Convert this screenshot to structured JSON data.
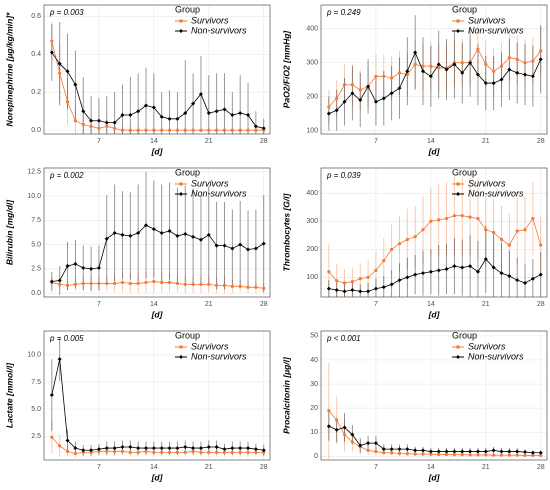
{
  "chart_data": [
    {
      "type": "line",
      "annotation": "p = 0.003",
      "y_label": "Norepinephrine [µg/kg/min]*",
      "x_label": "[d]",
      "legend_title": "Group",
      "legend": "top-right",
      "grid": true,
      "x": [
        1,
        2,
        3,
        4,
        5,
        6,
        7,
        8,
        9,
        10,
        11,
        12,
        13,
        14,
        15,
        16,
        17,
        18,
        19,
        20,
        21,
        22,
        23,
        24,
        25,
        26,
        27,
        28
      ],
      "xlim": [
        0,
        28.8
      ],
      "xticks": [
        7,
        14,
        21,
        28
      ],
      "ylim": [
        -0.02,
        0.66
      ],
      "yticks": [
        {
          "value": 0,
          "label": "0.0"
        },
        {
          "value": 0.2,
          "label": "0.2"
        },
        {
          "value": 0.4,
          "label": "0.4"
        },
        {
          "value": 0.6,
          "label": "0.6"
        }
      ],
      "series": [
        {
          "name": "Survivors",
          "color": "#f4793a",
          "values": [
            0.47,
            0.3,
            0.15,
            0.05,
            0.03,
            0.02,
            0.01,
            0.02,
            0.01,
            0,
            0,
            0,
            0,
            0,
            0,
            0,
            0,
            0,
            0,
            0,
            0,
            0,
            0,
            0,
            0,
            0,
            0,
            0
          ],
          "errors": [
            0.1,
            0.15,
            0.12,
            0.08,
            0.06,
            0.05,
            0.04,
            0.04,
            0.03,
            0.02,
            0.02,
            0.02,
            0.01,
            0.01,
            0.01,
            0.01,
            0.01,
            0.01,
            0.01,
            0.01,
            0.01,
            0.01,
            0.01,
            0.01,
            0.01,
            0.01,
            0.01,
            0.01
          ]
        },
        {
          "name": "Non-survivors",
          "color": "#000000",
          "values": [
            0.41,
            0.35,
            0.31,
            0.24,
            0.1,
            0.05,
            0.05,
            0.04,
            0.04,
            0.08,
            0.08,
            0.1,
            0.13,
            0.12,
            0.07,
            0.06,
            0.06,
            0.09,
            0.14,
            0.19,
            0.09,
            0.1,
            0.11,
            0.08,
            0.09,
            0.08,
            0.02,
            0.01
          ],
          "errors": [
            0.15,
            0.22,
            0.2,
            0.18,
            0.18,
            0.13,
            0.12,
            0.14,
            0.16,
            0.16,
            0.2,
            0.2,
            0.2,
            0.18,
            0.13,
            0.15,
            0.14,
            0.28,
            0.16,
            0.2,
            0.2,
            0.2,
            0.19,
            0.12,
            0.2,
            0.17,
            0.08,
            0.05
          ]
        }
      ]
    },
    {
      "type": "line",
      "annotation": "p = 0.249",
      "y_label": "PaO2/FiO2 [mmHg]",
      "x_label": "[d]",
      "legend_title": "Group",
      "legend": "top-right",
      "grid": true,
      "x": [
        1,
        2,
        3,
        4,
        5,
        6,
        7,
        8,
        9,
        10,
        11,
        12,
        13,
        14,
        15,
        16,
        17,
        18,
        19,
        20,
        21,
        22,
        23,
        24,
        25,
        26,
        27,
        28
      ],
      "xlim": [
        0,
        28.8
      ],
      "xticks": [
        7,
        14,
        21,
        28
      ],
      "ylim": [
        90,
        470
      ],
      "yticks": [
        100,
        200,
        300,
        400
      ],
      "series": [
        {
          "name": "Survivors",
          "color": "#f4793a",
          "values": [
            170,
            195,
            235,
            235,
            220,
            230,
            260,
            260,
            255,
            270,
            265,
            295,
            290,
            290,
            285,
            285,
            300,
            300,
            300,
            340,
            295,
            275,
            290,
            315,
            310,
            300,
            305,
            335
          ],
          "errors": [
            50,
            55,
            60,
            60,
            60,
            60,
            65,
            65,
            65,
            65,
            65,
            70,
            70,
            70,
            70,
            70,
            70,
            70,
            70,
            70,
            70,
            70,
            70,
            70,
            70,
            70,
            70,
            70
          ]
        },
        {
          "name": "Non-survivors",
          "color": "#000000",
          "values": [
            150,
            160,
            185,
            210,
            190,
            230,
            185,
            195,
            210,
            225,
            275,
            330,
            275,
            260,
            295,
            280,
            295,
            270,
            300,
            265,
            240,
            240,
            250,
            280,
            270,
            265,
            260,
            310
          ],
          "errors": [
            50,
            60,
            70,
            80,
            80,
            80,
            70,
            80,
            80,
            90,
            100,
            110,
            100,
            90,
            100,
            90,
            100,
            90,
            100,
            90,
            80,
            80,
            80,
            90,
            90,
            90,
            90,
            100
          ]
        }
      ]
    },
    {
      "type": "line",
      "annotation": "p = 0.002",
      "y_label": "Bilirubin [mg/dl]",
      "x_label": "[d]",
      "legend_title": "Group",
      "legend": "top-right",
      "grid": true,
      "x": [
        1,
        2,
        3,
        4,
        5,
        6,
        7,
        8,
        9,
        10,
        11,
        12,
        13,
        14,
        15,
        16,
        17,
        18,
        19,
        20,
        21,
        22,
        23,
        24,
        25,
        26,
        27,
        28
      ],
      "xlim": [
        0,
        28.8
      ],
      "xticks": [
        7,
        14,
        21,
        28
      ],
      "ylim": [
        -0.4,
        12.9
      ],
      "yticks": [
        {
          "value": 0,
          "label": "0.0"
        },
        {
          "value": 2.5,
          "label": "2.5"
        },
        {
          "value": 5,
          "label": "5.0"
        },
        {
          "value": 7.5,
          "label": "7.5"
        },
        {
          "value": 10,
          "label": "10.0"
        },
        {
          "value": 12.5,
          "label": "12.5"
        }
      ],
      "series": [
        {
          "name": "Survivors",
          "color": "#f4793a",
          "values": [
            1.1,
            0.9,
            0.8,
            0.9,
            1.0,
            1.0,
            1.0,
            1.0,
            1.0,
            1.1,
            1.0,
            1.0,
            1.1,
            1.2,
            1.1,
            1.1,
            1.0,
            0.9,
            0.9,
            0.9,
            0.9,
            0.8,
            0.8,
            0.7,
            0.7,
            0.6,
            0.6,
            0.5
          ],
          "errors": [
            0.5,
            0.4,
            0.5,
            0.6,
            0.7,
            0.8,
            0.8,
            0.8,
            0.9,
            1.0,
            1.0,
            1.0,
            1.1,
            1.1,
            1.0,
            1.0,
            0.9,
            0.9,
            0.9,
            0.9,
            0.8,
            0.8,
            0.8,
            0.7,
            0.6,
            0.6,
            0.6,
            0.5
          ]
        },
        {
          "name": "Non-survivors",
          "color": "#000000",
          "values": [
            1.2,
            1.3,
            2.8,
            3.0,
            2.6,
            2.5,
            2.6,
            5.6,
            6.2,
            6.0,
            5.9,
            6.2,
            7.0,
            6.6,
            6.2,
            6.4,
            5.9,
            6.1,
            5.8,
            5.5,
            6.0,
            4.9,
            4.9,
            4.6,
            5.0,
            4.5,
            4.6,
            5.1
          ],
          "errors": [
            1.0,
            1.5,
            2.5,
            2.5,
            2.3,
            2.3,
            2.3,
            4.5,
            5.0,
            4.5,
            4.5,
            5.0,
            5.5,
            5.0,
            5.0,
            5.0,
            5.0,
            5.0,
            5.0,
            4.5,
            5.0,
            4.5,
            4.5,
            4.0,
            4.5,
            4.0,
            4.0,
            5.0
          ]
        }
      ]
    },
    {
      "type": "line",
      "annotation": "p = 0.039",
      "y_label": "Thrombocytes [G/l]",
      "x_label": "[d]",
      "legend_title": "Group",
      "legend": "top-right",
      "grid": true,
      "x": [
        1,
        2,
        3,
        4,
        5,
        6,
        7,
        8,
        9,
        10,
        11,
        12,
        13,
        14,
        15,
        16,
        17,
        18,
        19,
        20,
        21,
        22,
        23,
        24,
        25,
        26,
        27,
        28
      ],
      "xlim": [
        0,
        28.8
      ],
      "xticks": [
        7,
        14,
        21,
        28
      ],
      "ylim": [
        30,
        490
      ],
      "yticks": [
        100,
        200,
        300,
        400
      ],
      "series": [
        {
          "name": "Survivors",
          "color": "#f4793a",
          "values": [
            120,
            88,
            80,
            85,
            95,
            100,
            125,
            160,
            200,
            220,
            235,
            245,
            270,
            300,
            305,
            310,
            320,
            320,
            315,
            310,
            270,
            260,
            235,
            215,
            265,
            270,
            310,
            215
          ],
          "errors": [
            100,
            60,
            50,
            50,
            55,
            60,
            70,
            80,
            90,
            100,
            110,
            110,
            120,
            120,
            130,
            130,
            140,
            140,
            140,
            140,
            130,
            120,
            120,
            110,
            120,
            120,
            130,
            100
          ]
        },
        {
          "name": "Non-survivors",
          "color": "#000000",
          "values": [
            60,
            55,
            50,
            55,
            50,
            50,
            60,
            65,
            75,
            90,
            100,
            110,
            115,
            120,
            125,
            130,
            140,
            135,
            140,
            120,
            165,
            135,
            115,
            105,
            90,
            80,
            95,
            110
          ],
          "errors": [
            30,
            30,
            25,
            25,
            25,
            30,
            35,
            40,
            50,
            60,
            70,
            70,
            80,
            80,
            90,
            90,
            100,
            100,
            110,
            110,
            120,
            120,
            110,
            90,
            80,
            70,
            70,
            80
          ]
        }
      ]
    },
    {
      "type": "line",
      "annotation": "p = 0.005",
      "y_label": "Lactate [mmol/l]",
      "x_label": "[d]",
      "legend_title": "Group",
      "legend": "top-right",
      "grid": true,
      "x": [
        1,
        2,
        3,
        4,
        5,
        6,
        7,
        8,
        9,
        10,
        11,
        12,
        13,
        14,
        15,
        16,
        17,
        18,
        19,
        20,
        21,
        22,
        23,
        24,
        25,
        26,
        27,
        28
      ],
      "xlim": [
        0,
        28.8
      ],
      "xticks": [
        7,
        14,
        21,
        28
      ],
      "ylim": [
        0.3,
        12.2
      ],
      "yticks": [
        2.5,
        {
          "value": 5,
          "label": "5.0"
        },
        7.5,
        {
          "value": 10,
          "label": "10.0"
        }
      ],
      "series": [
        {
          "name": "Survivors",
          "color": "#f4793a",
          "values": [
            2.4,
            1.6,
            1.1,
            0.9,
            1.0,
            1.0,
            1.1,
            1.1,
            1.1,
            1.1,
            1.0,
            1.0,
            1.1,
            1.0,
            1.0,
            1.0,
            1.0,
            1.0,
            1.1,
            1.0,
            1.0,
            1.0,
            1.0,
            1.0,
            1.0,
            1.0,
            1.0,
            1.0
          ],
          "errors": [
            1.5,
            1.0,
            0.5,
            0.4,
            0.4,
            0.4,
            0.4,
            0.4,
            0.4,
            0.4,
            0.4,
            0.4,
            0.4,
            0.4,
            0.4,
            0.4,
            0.4,
            0.4,
            0.4,
            0.4,
            0.4,
            0.4,
            0.4,
            0.4,
            0.4,
            0.4,
            0.4,
            0.4
          ]
        },
        {
          "name": "Non-survivors",
          "color": "#000000",
          "values": [
            6.3,
            9.6,
            2.1,
            1.4,
            1.2,
            1.2,
            1.3,
            1.4,
            1.4,
            1.5,
            1.5,
            1.4,
            1.4,
            1.4,
            1.4,
            1.4,
            1.4,
            1.5,
            1.4,
            1.4,
            1.5,
            1.5,
            1.3,
            1.4,
            1.4,
            1.4,
            1.3,
            1.2
          ],
          "errors": [
            3.3,
            2.0,
            1.0,
            0.6,
            0.5,
            0.5,
            0.5,
            0.6,
            0.6,
            0.6,
            0.6,
            0.6,
            0.6,
            0.6,
            0.6,
            0.6,
            0.6,
            0.6,
            0.6,
            0.6,
            0.6,
            0.6,
            0.5,
            0.6,
            0.6,
            0.6,
            0.5,
            0.5
          ]
        }
      ]
    },
    {
      "type": "line",
      "annotation": "p < 0.001",
      "y_label": "Procalcitonin [µg/l]",
      "x_label": "[d]",
      "legend_title": "Group",
      "legend": "top-right",
      "grid": true,
      "x": [
        1,
        2,
        3,
        4,
        5,
        6,
        7,
        8,
        9,
        10,
        11,
        12,
        13,
        14,
        15,
        16,
        17,
        18,
        19,
        20,
        21,
        22,
        23,
        24,
        25,
        26,
        27,
        28
      ],
      "xlim": [
        0,
        28.8
      ],
      "xticks": [
        7,
        14,
        21,
        28
      ],
      "ylim": [
        -1.5,
        52
      ],
      "yticks": [
        0,
        10,
        20,
        30,
        40,
        50
      ],
      "series": [
        {
          "name": "Survivors",
          "color": "#f4793a",
          "values": [
            19,
            15,
            9,
            6,
            4,
            2.5,
            2,
            1.5,
            1.5,
            1.2,
            1.1,
            1,
            1,
            0.9,
            0.8,
            0.8,
            0.7,
            0.7,
            0.6,
            0.6,
            0.6,
            0.5,
            0.5,
            0.5,
            0.5,
            0.4,
            0.4,
            0.4
          ],
          "errors": [
            20,
            10,
            7,
            4,
            3,
            2,
            1.5,
            1,
            1,
            1,
            0.8,
            0.8,
            0.8,
            0.7,
            0.6,
            0.6,
            0.6,
            0.6,
            0.5,
            0.5,
            0.5,
            0.4,
            0.4,
            0.4,
            0.4,
            0.4,
            0.4,
            0.4
          ]
        },
        {
          "name": "Non-survivors",
          "color": "#000000",
          "values": [
            12.5,
            11,
            12,
            9,
            4.5,
            5.5,
            5.5,
            3,
            3,
            3,
            3,
            2.5,
            2.5,
            2,
            2,
            2,
            2,
            2,
            2,
            2,
            2,
            2.5,
            2,
            2,
            2,
            1.8,
            1.5,
            1.5
          ],
          "errors": [
            6,
            5,
            6,
            4,
            3,
            3,
            3,
            2,
            2,
            2,
            2,
            1.5,
            1.5,
            1.5,
            1.5,
            1.5,
            1.5,
            1.5,
            1.5,
            1.5,
            1.5,
            1.5,
            1.5,
            1.5,
            1.5,
            1.2,
            1,
            1
          ]
        }
      ]
    }
  ]
}
